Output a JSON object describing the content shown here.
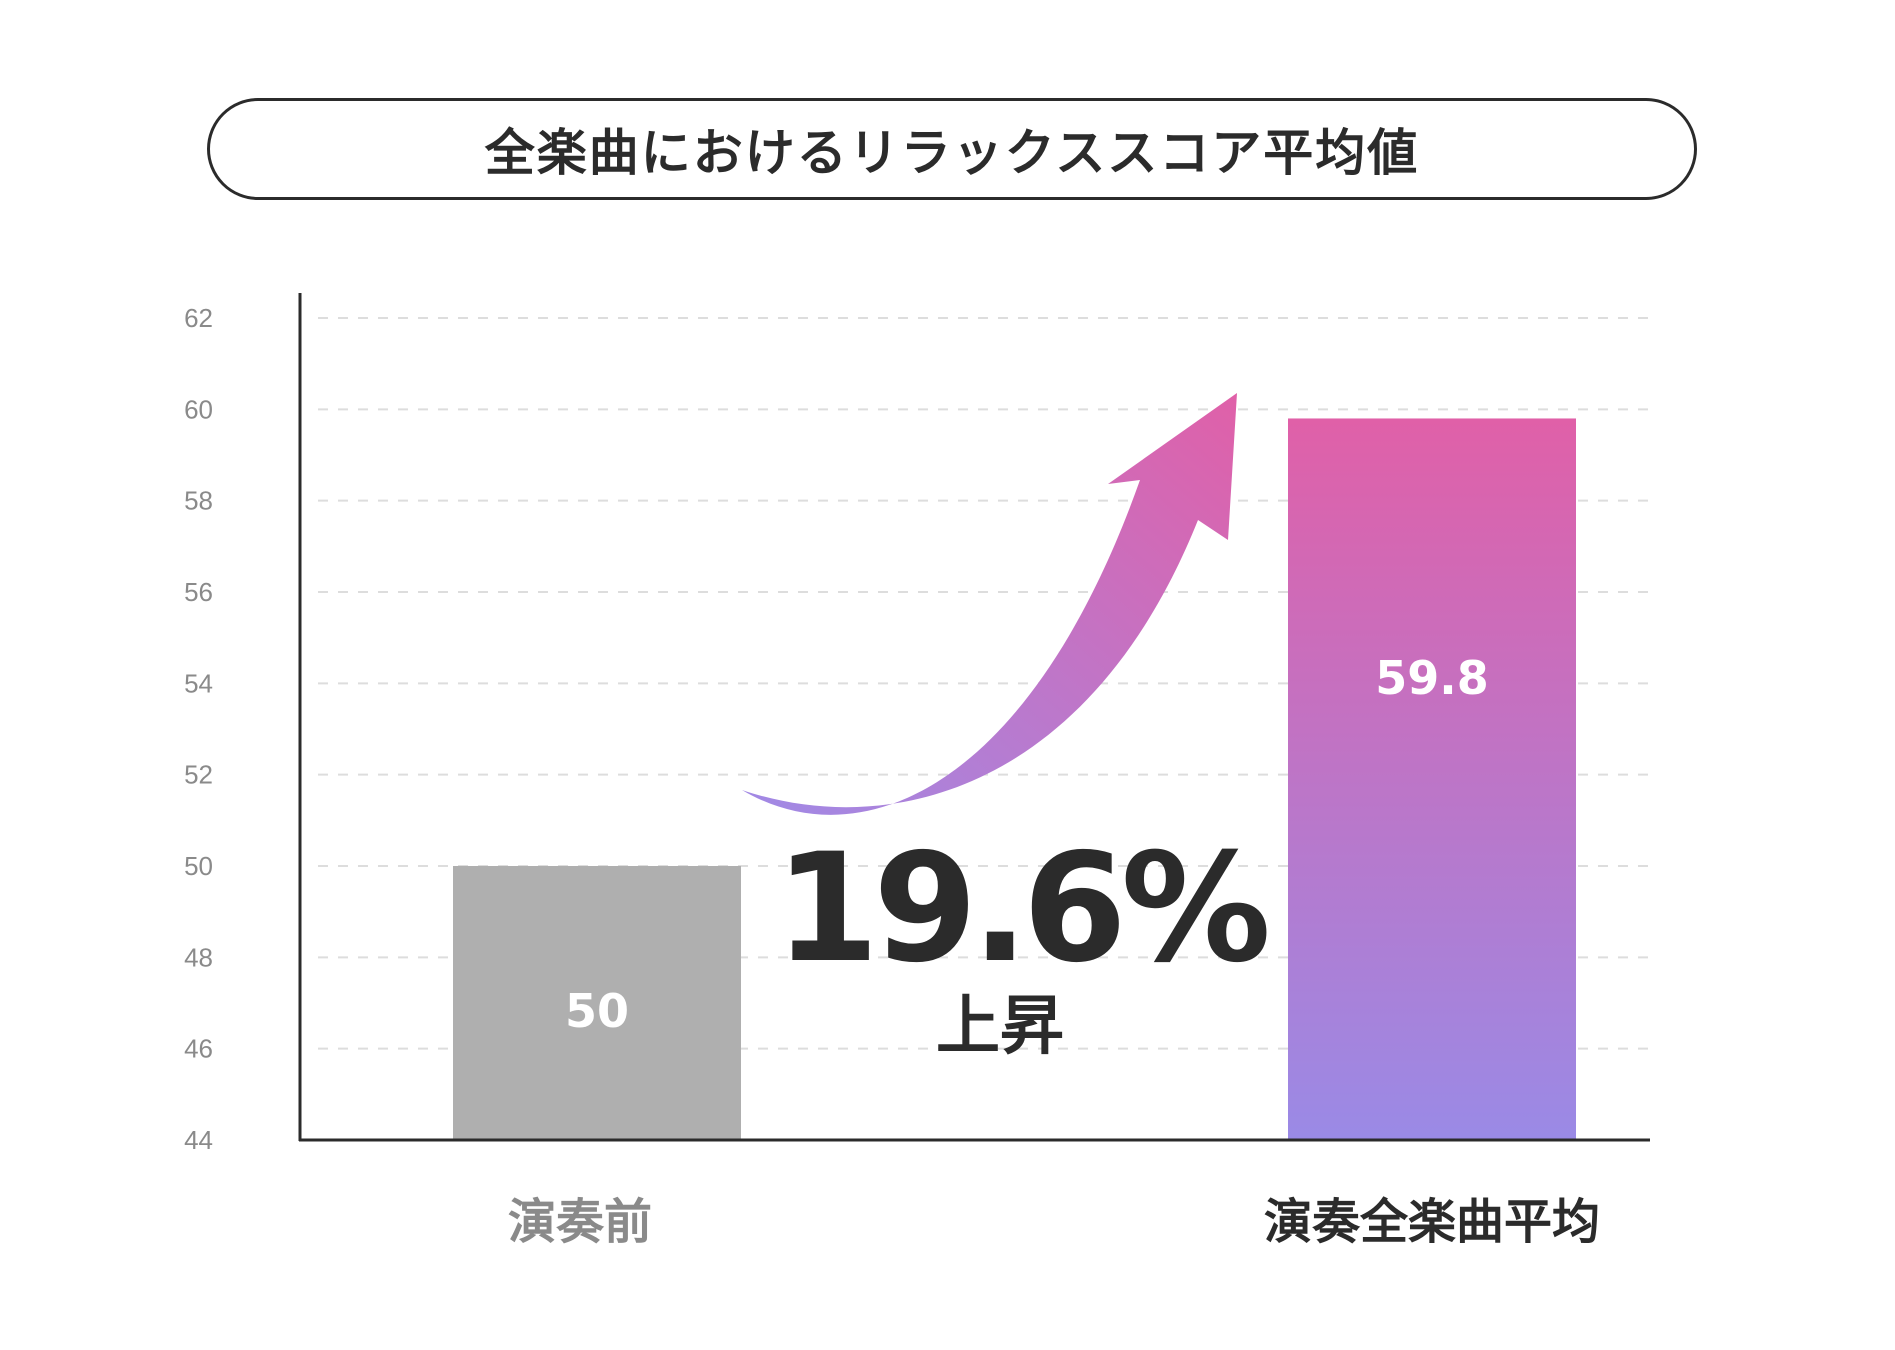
{
  "chart_data": {
    "type": "bar",
    "title": "全楽曲におけるリラックススコア平均値",
    "categories": [
      "演奏前",
      "演奏全楽曲平均"
    ],
    "values": [
      50,
      59.8
    ],
    "value_labels": [
      "50",
      "59.8"
    ],
    "ylim": [
      44,
      62
    ],
    "yticks": [
      44,
      46,
      48,
      50,
      52,
      54,
      56,
      58,
      60,
      62
    ],
    "grid": true,
    "annotation": {
      "value": "19.6%",
      "text": "上昇"
    },
    "colors": {
      "bar_before": "#afafaf",
      "bar_after_top": "#e060a8",
      "bar_after_bottom": "#9a8ae6",
      "category_before": "#8a8a8a",
      "category_after": "#2b2b2b",
      "axis": "#2b2b2b",
      "grid": "#dddddd"
    }
  }
}
